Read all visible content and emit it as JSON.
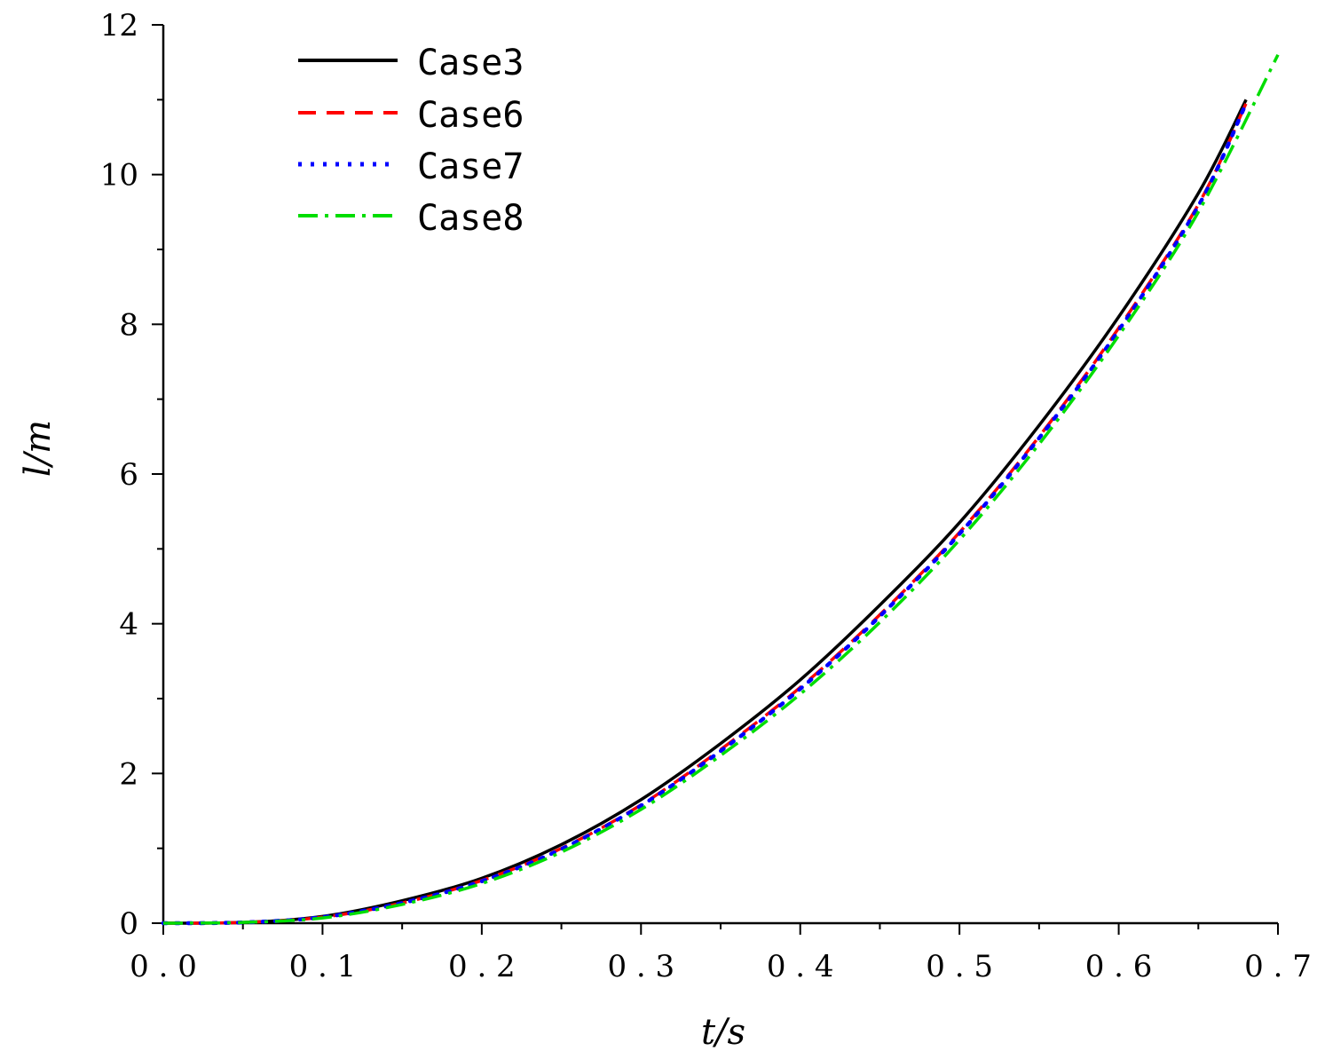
{
  "chart_data": {
    "type": "line",
    "title": "",
    "xlabel": "t/s",
    "ylabel": "l/m",
    "xlim": [
      0.0,
      0.7
    ],
    "ylim": [
      0,
      12
    ],
    "xticks": [
      "0.0",
      "0.1",
      "0.2",
      "0.3",
      "0.4",
      "0.5",
      "0.6",
      "0.7"
    ],
    "yticks": [
      "0",
      "2",
      "4",
      "6",
      "8",
      "10",
      "12"
    ],
    "grid": false,
    "legend_position": "top-left",
    "series": [
      {
        "name": "Case3",
        "color": "#000000",
        "style": "solid",
        "x": [
          0.0,
          0.05,
          0.1,
          0.15,
          0.2,
          0.25,
          0.3,
          0.35,
          0.4,
          0.45,
          0.5,
          0.55,
          0.6,
          0.65,
          0.68
        ],
        "y": [
          0.0,
          0.01,
          0.09,
          0.3,
          0.6,
          1.05,
          1.65,
          2.4,
          3.25,
          4.25,
          5.35,
          6.65,
          8.1,
          9.75,
          11.0
        ]
      },
      {
        "name": "Case6",
        "color": "#ff0000",
        "style": "dashed",
        "x": [
          0.0,
          0.05,
          0.1,
          0.15,
          0.2,
          0.25,
          0.3,
          0.35,
          0.4,
          0.45,
          0.5,
          0.55,
          0.6,
          0.65,
          0.68
        ],
        "y": [
          0.0,
          0.01,
          0.08,
          0.27,
          0.57,
          1.0,
          1.58,
          2.32,
          3.15,
          4.12,
          5.22,
          6.5,
          7.95,
          9.6,
          10.95
        ]
      },
      {
        "name": "Case7",
        "color": "#0000ff",
        "style": "dotted",
        "x": [
          0.0,
          0.05,
          0.1,
          0.15,
          0.2,
          0.25,
          0.3,
          0.35,
          0.4,
          0.45,
          0.5,
          0.55,
          0.6,
          0.65,
          0.68
        ],
        "y": [
          0.0,
          0.01,
          0.08,
          0.27,
          0.56,
          0.99,
          1.57,
          2.3,
          3.13,
          4.1,
          5.2,
          6.48,
          7.92,
          9.58,
          10.95
        ]
      },
      {
        "name": "Case8",
        "color": "#00dd00",
        "style": "dashdot",
        "x": [
          0.0,
          0.05,
          0.1,
          0.15,
          0.2,
          0.25,
          0.3,
          0.35,
          0.4,
          0.45,
          0.5,
          0.55,
          0.6,
          0.65,
          0.7
        ],
        "y": [
          0.0,
          0.01,
          0.07,
          0.25,
          0.53,
          0.95,
          1.52,
          2.24,
          3.06,
          4.02,
          5.12,
          6.4,
          7.85,
          9.5,
          11.6
        ]
      }
    ]
  }
}
